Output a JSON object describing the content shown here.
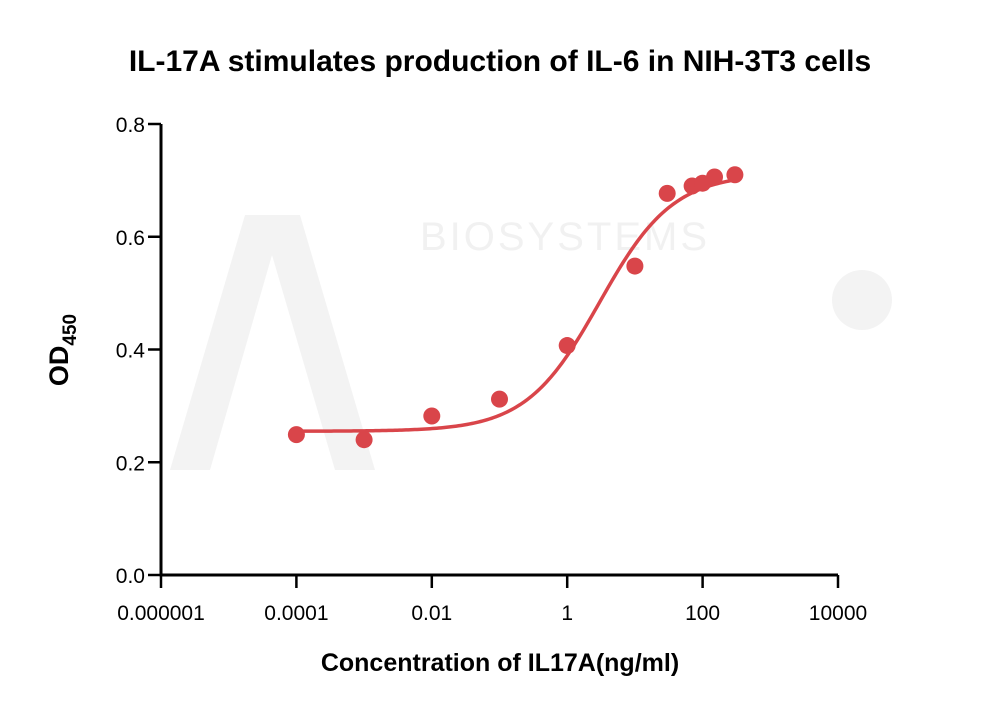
{
  "chart_data": {
    "type": "scatter",
    "title": "IL-17A stimulates production of IL-6 in NIH-3T3 cells",
    "xlabel": "Concentration of IL17A(ng/ml)",
    "ylabel": "OD",
    "ylabel_subscript": "450",
    "x_scale": "log",
    "xlim": [
      1e-06,
      10000
    ],
    "ylim": [
      0.0,
      0.8
    ],
    "x_ticks": [
      1e-06,
      0.0001,
      0.01,
      1,
      100,
      10000
    ],
    "x_tick_labels": [
      "0.000001",
      "0.0001",
      "0.01",
      "1",
      "100",
      "10000"
    ],
    "y_ticks": [
      0.0,
      0.2,
      0.4,
      0.6,
      0.8
    ],
    "y_tick_labels": [
      "0.0",
      "0.2",
      "0.4",
      "0.6",
      "0.8"
    ],
    "grid": false,
    "series": [
      {
        "color": "#d9454a",
        "points": [
          {
            "x": 0.0001,
            "y": 0.249
          },
          {
            "x": 0.001,
            "y": 0.24
          },
          {
            "x": 0.01,
            "y": 0.282
          },
          {
            "x": 0.1,
            "y": 0.312
          },
          {
            "x": 1,
            "y": 0.407
          },
          {
            "x": 10,
            "y": 0.548
          },
          {
            "x": 30,
            "y": 0.677
          },
          {
            "x": 70,
            "y": 0.69
          },
          {
            "x": 100,
            "y": 0.695
          },
          {
            "x": 150,
            "y": 0.706
          },
          {
            "x": 300,
            "y": 0.71
          }
        ],
        "fit": {
          "model": "4PL",
          "bottom": 0.255,
          "top": 0.712,
          "ec50": 3.0,
          "hill": 0.8,
          "x_range": [
            0.0001,
            300
          ]
        }
      }
    ],
    "watermark": "BIOSYSTEMS"
  }
}
